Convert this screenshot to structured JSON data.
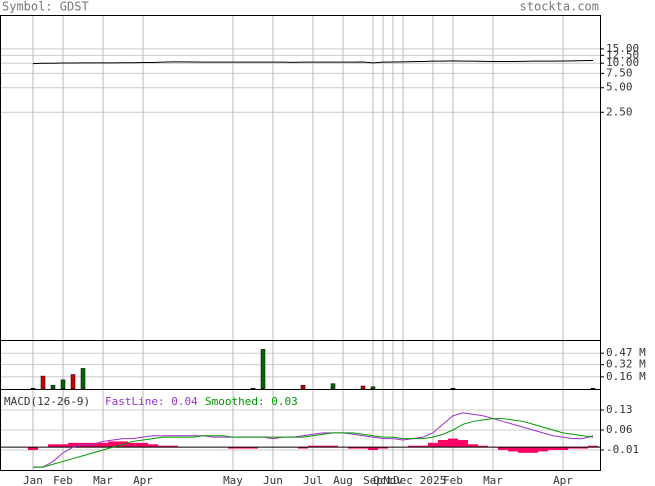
{
  "chart_data": {
    "type": "stock",
    "symbol_label": "Symbol: GDST",
    "source": "stockta.com",
    "grid": true,
    "categories": [
      "Jan",
      null,
      null,
      "Feb",
      null,
      null,
      null,
      "Mar",
      null,
      null,
      null,
      "Apr",
      null,
      null,
      null,
      null,
      null,
      null,
      null,
      null,
      "May",
      null,
      null,
      null,
      "Jun",
      null,
      null,
      null,
      "Jul",
      null,
      null,
      "Aug",
      null,
      null,
      "Sep",
      "Oct",
      "Nov",
      "Dec",
      null,
      null,
      "2025",
      null,
      "Feb",
      null,
      null,
      null,
      "Mar",
      null,
      null,
      null,
      null,
      null,
      null,
      "Apr",
      null,
      null,
      null
    ],
    "price": {
      "log": true,
      "color": "#000000",
      "ylim": [
        0.004,
        38
      ],
      "yticks": [
        {
          "value": 15,
          "label": "15.00"
        },
        {
          "value": 12.5,
          "label": "12.50"
        },
        {
          "value": 10,
          "label": "10.00"
        },
        {
          "value": 7.5,
          "label": "7.50"
        },
        {
          "value": 5,
          "label": "5.00"
        },
        {
          "value": 2.5,
          "label": "2.50"
        }
      ],
      "values": [
        9.9,
        10.0,
        10.0,
        10.05,
        10.05,
        10.1,
        10.1,
        10.1,
        10.1,
        10.15,
        10.15,
        10.2,
        10.2,
        10.3,
        10.4,
        10.4,
        10.35,
        10.3,
        10.3,
        10.3,
        10.3,
        10.3,
        10.3,
        10.3,
        10.3,
        10.3,
        10.25,
        10.3,
        10.3,
        10.3,
        10.3,
        10.3,
        10.3,
        10.35,
        10.1,
        10.3,
        10.35,
        10.4,
        10.45,
        10.5,
        10.6,
        10.6,
        10.7,
        10.6,
        10.6,
        10.55,
        10.5,
        10.5,
        10.5,
        10.55,
        10.6,
        10.6,
        10.6,
        10.65,
        10.7,
        10.75,
        10.8
      ]
    },
    "volume": {
      "ylim": [
        0,
        0.63
      ],
      "yticks": [
        {
          "value": 0.47,
          "label": "0.47 M"
        },
        {
          "value": 0.32,
          "label": "0.32 M"
        },
        {
          "value": 0.16,
          "label": "0.16 M"
        }
      ],
      "values": [
        0.01,
        0.17,
        0.05,
        0.12,
        0.19,
        0.27,
        0,
        0,
        0,
        0,
        0,
        0,
        0,
        0,
        0,
        0,
        0,
        0,
        0,
        0,
        0,
        0,
        0.01,
        0.52,
        0,
        0,
        0,
        0.05,
        0,
        0,
        0.07,
        0,
        0,
        0.04,
        0.03,
        0,
        0,
        0,
        0,
        0,
        0,
        0,
        0.01,
        0,
        0,
        0,
        0,
        0,
        0,
        0,
        0,
        0,
        0,
        0,
        0,
        0,
        0.01
      ],
      "colors": [
        "#006600",
        "#cc0000",
        "#006600",
        "#006600",
        "#cc0000",
        "#006600",
        "#006600",
        "#006600",
        "#006600",
        "#006600",
        "#006600",
        "#006600",
        "#006600",
        "#006600",
        "#006600",
        "#006600",
        "#006600",
        "#006600",
        "#006600",
        "#006600",
        "#006600",
        "#006600",
        "#cc0000",
        "#006600",
        "#006600",
        "#006600",
        "#006600",
        "#cc0000",
        "#006600",
        "#006600",
        "#006600",
        "#006600",
        "#006600",
        "#cc0000",
        "#006600",
        "#006600",
        "#006600",
        "#006600",
        "#006600",
        "#006600",
        "#006600",
        "#006600",
        "#006600",
        "#006600",
        "#006600",
        "#006600",
        "#006600",
        "#006600",
        "#006600",
        "#006600",
        "#006600",
        "#006600",
        "#006600",
        "#006600",
        "#006600",
        "#006600",
        "#006600"
      ]
    },
    "macd": {
      "label": "MACD(12-26-9)",
      "ylim": [
        -0.08,
        0.2
      ],
      "yticks": [
        0.13,
        0.06,
        -0.01
      ],
      "histogram_color": "#ff0066",
      "histogram": [
        -0.01,
        0.0,
        0.01,
        0.01,
        0.015,
        0.015,
        0.015,
        0.015,
        0.02,
        0.02,
        0.015,
        0.015,
        0.01,
        0.005,
        0.005,
        0.0,
        0.0,
        0.0,
        0.0,
        0.0,
        -0.005,
        -0.005,
        -0.005,
        0,
        0,
        0,
        0,
        -0.005,
        0.005,
        0.005,
        0.005,
        0,
        -0.005,
        -0.005,
        -0.01,
        -0.005,
        0,
        0,
        0.005,
        0.005,
        0.015,
        0.025,
        0.03,
        0.025,
        0.01,
        0.005,
        0,
        -0.01,
        -0.015,
        -0.02,
        -0.02,
        -0.015,
        -0.01,
        -0.01,
        -0.005,
        -0.005,
        0.005
      ],
      "series": [
        {
          "name": "FastLine: 0.04",
          "color": "#9933cc",
          "values": [
            -0.07,
            -0.07,
            -0.05,
            -0.02,
            0.0,
            0.01,
            0.01,
            0.02,
            0.025,
            0.03,
            0.03,
            0.035,
            0.04,
            0.04,
            0.04,
            0.04,
            0.04,
            0.04,
            0.035,
            0.035,
            0.035,
            0.035,
            0.035,
            0.035,
            0.03,
            0.035,
            0.035,
            0.04,
            0.045,
            0.05,
            0.05,
            0.05,
            0.045,
            0.04,
            0.035,
            0.03,
            0.03,
            0.025,
            0.03,
            0.035,
            0.05,
            0.08,
            0.11,
            0.12,
            0.115,
            0.11,
            0.1,
            0.09,
            0.08,
            0.07,
            0.06,
            0.05,
            0.04,
            0.035,
            0.03,
            0.03,
            0.04
          ]
        },
        {
          "name": "Smoothed: 0.03",
          "color": "#009900",
          "values": [
            -0.07,
            -0.07,
            -0.06,
            -0.05,
            -0.04,
            -0.03,
            -0.02,
            -0.01,
            0.0,
            0.01,
            0.02,
            0.025,
            0.03,
            0.035,
            0.035,
            0.035,
            0.035,
            0.04,
            0.04,
            0.04,
            0.035,
            0.035,
            0.035,
            0.035,
            0.035,
            0.035,
            0.035,
            0.035,
            0.04,
            0.045,
            0.05,
            0.05,
            0.05,
            0.045,
            0.04,
            0.035,
            0.035,
            0.03,
            0.03,
            0.03,
            0.035,
            0.045,
            0.06,
            0.08,
            0.09,
            0.095,
            0.1,
            0.1,
            0.095,
            0.09,
            0.08,
            0.07,
            0.06,
            0.05,
            0.045,
            0.04,
            0.035
          ]
        }
      ]
    }
  }
}
